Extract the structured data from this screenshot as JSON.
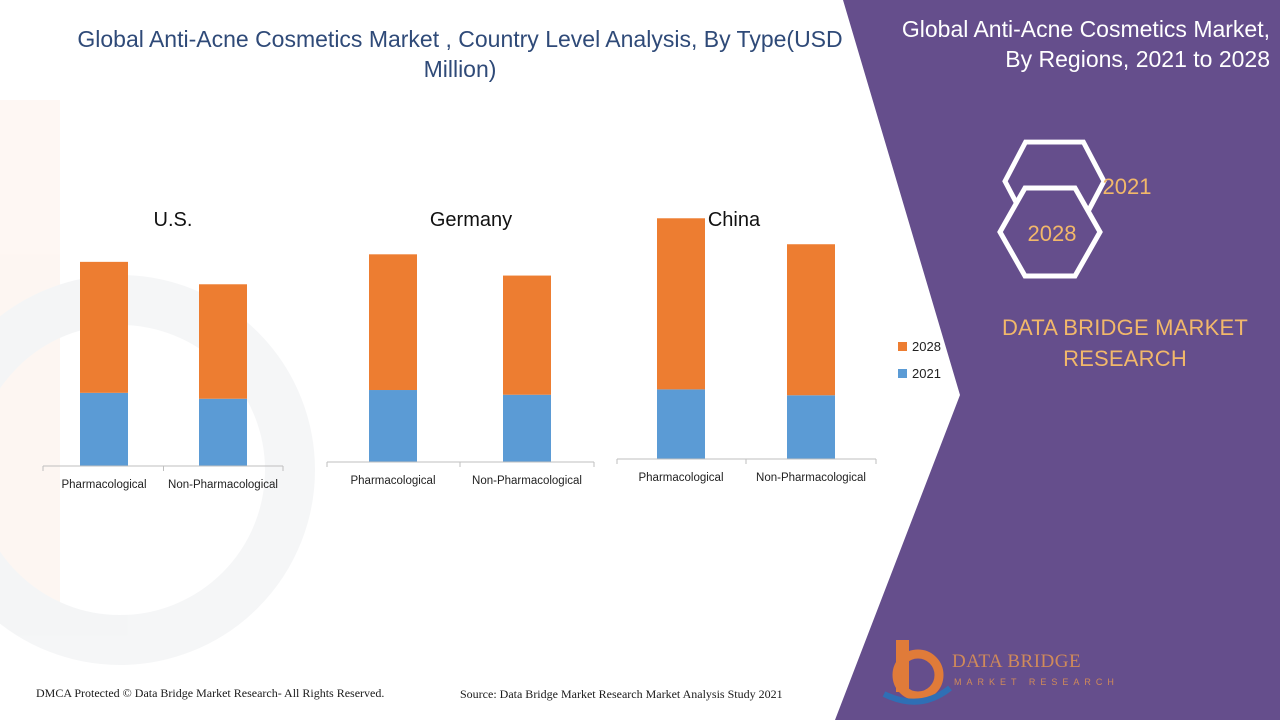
{
  "title": "Global Anti-Acne Cosmetics Market , Country Level Analysis, By Type(USD Million)",
  "side_title": "Global Anti-Acne Cosmetics Market, By Regions, 2021 to 2028",
  "hexagons": {
    "front": "2028",
    "back": "2021"
  },
  "brand": "DATA BRIDGE MARKET RESEARCH",
  "footer": {
    "left": "DMCA Protected © Data Bridge Market Research- All Rights Reserved.",
    "right": "Source: Data Bridge Market Research Market Analysis Study 2021"
  },
  "logo": {
    "line1": "DATA BRIDGE",
    "line2": "MARKET RESEARCH"
  },
  "colors": {
    "series_2021": "#5b9bd5",
    "series_2028": "#ed7d31",
    "panel": "#654e8c",
    "title": "#2f4a78",
    "brand_text": "#f2b86a"
  },
  "chart_data": [
    {
      "type": "bar",
      "stacked": true,
      "title": "U.S.",
      "categories": [
        "Pharmacological",
        "Non-Pharmacological"
      ],
      "series": [
        {
          "name": "2021",
          "values": [
            62,
            57
          ]
        },
        {
          "name": "2028",
          "values": [
            111,
            97
          ]
        }
      ]
    },
    {
      "type": "bar",
      "stacked": true,
      "title": "Germany",
      "categories": [
        "Pharmacological",
        "Non-Pharmacological"
      ],
      "series": [
        {
          "name": "2021",
          "values": [
            61,
            57
          ]
        },
        {
          "name": "2028",
          "values": [
            115,
            101
          ]
        }
      ]
    },
    {
      "type": "bar",
      "stacked": true,
      "title": "China",
      "categories": [
        "Pharmacological",
        "Non-Pharmacological"
      ],
      "series": [
        {
          "name": "2021",
          "values": [
            59,
            54
          ]
        },
        {
          "name": "2028",
          "values": [
            145,
            128
          ]
        }
      ]
    }
  ],
  "legend": [
    {
      "label": "2028",
      "color": "#ed7d31"
    },
    {
      "label": "2021",
      "color": "#5b9bd5"
    }
  ]
}
